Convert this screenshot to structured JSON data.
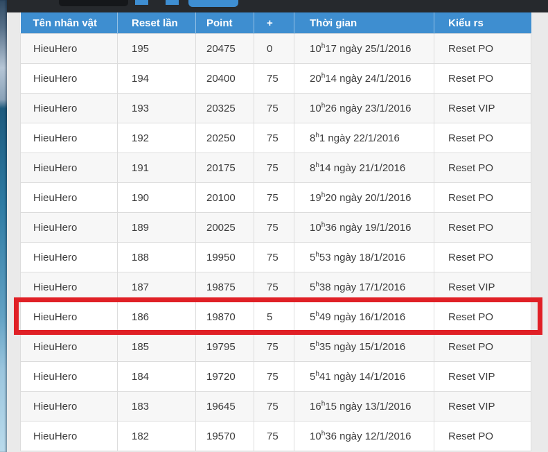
{
  "page": {
    "background_color": "#eaeaea",
    "topbar_color": "#26292d",
    "accent_blue": "#3e8ed0",
    "highlight_red": "#e02026",
    "stripe_color": "#f7f7f7"
  },
  "table": {
    "columns": [
      {
        "label": "Tên nhân vật"
      },
      {
        "label": "Reset lần"
      },
      {
        "label": "Point"
      },
      {
        "label": "+"
      },
      {
        "label": "Thời gian"
      },
      {
        "label": "Kiểu rs"
      }
    ],
    "rows": [
      {
        "name": "HieuHero",
        "reset": "195",
        "point": "20475",
        "plus": "0",
        "time": "10h17 ngày 25/1/2016",
        "type": "Reset PO",
        "highlighted": false
      },
      {
        "name": "HieuHero",
        "reset": "194",
        "point": "20400",
        "plus": "75",
        "time": "20h14 ngày 24/1/2016",
        "type": "Reset PO",
        "highlighted": false
      },
      {
        "name": "HieuHero",
        "reset": "193",
        "point": "20325",
        "plus": "75",
        "time": "10h26 ngày 23/1/2016",
        "type": "Reset VIP",
        "highlighted": false
      },
      {
        "name": "HieuHero",
        "reset": "192",
        "point": "20250",
        "plus": "75",
        "time": "8h1 ngày 22/1/2016",
        "type": "Reset PO",
        "highlighted": false
      },
      {
        "name": "HieuHero",
        "reset": "191",
        "point": "20175",
        "plus": "75",
        "time": "8h14 ngày 21/1/2016",
        "type": "Reset PO",
        "highlighted": false
      },
      {
        "name": "HieuHero",
        "reset": "190",
        "point": "20100",
        "plus": "75",
        "time": "19h20 ngày 20/1/2016",
        "type": "Reset PO",
        "highlighted": false
      },
      {
        "name": "HieuHero",
        "reset": "189",
        "point": "20025",
        "plus": "75",
        "time": "10h36 ngày 19/1/2016",
        "type": "Reset PO",
        "highlighted": false
      },
      {
        "name": "HieuHero",
        "reset": "188",
        "point": "19950",
        "plus": "75",
        "time": "5h53 ngày 18/1/2016",
        "type": "Reset PO",
        "highlighted": false
      },
      {
        "name": "HieuHero",
        "reset": "187",
        "point": "19875",
        "plus": "75",
        "time": "5h38 ngày 17/1/2016",
        "type": "Reset VIP",
        "highlighted": false
      },
      {
        "name": "HieuHero",
        "reset": "186",
        "point": "19870",
        "plus": "5",
        "time": "5h49 ngày 16/1/2016",
        "type": "Reset PO",
        "highlighted": true
      },
      {
        "name": "HieuHero",
        "reset": "185",
        "point": "19795",
        "plus": "75",
        "time": "5h35 ngày 15/1/2016",
        "type": "Reset PO",
        "highlighted": false
      },
      {
        "name": "HieuHero",
        "reset": "184",
        "point": "19720",
        "plus": "75",
        "time": "5h41 ngày 14/1/2016",
        "type": "Reset VIP",
        "highlighted": false
      },
      {
        "name": "HieuHero",
        "reset": "183",
        "point": "19645",
        "plus": "75",
        "time": "16h15 ngày 13/1/2016",
        "type": "Reset VIP",
        "highlighted": false
      },
      {
        "name": "HieuHero",
        "reset": "182",
        "point": "19570",
        "plus": "75",
        "time": "10h36 ngày 12/1/2016",
        "type": "Reset PO",
        "highlighted": false
      }
    ]
  }
}
